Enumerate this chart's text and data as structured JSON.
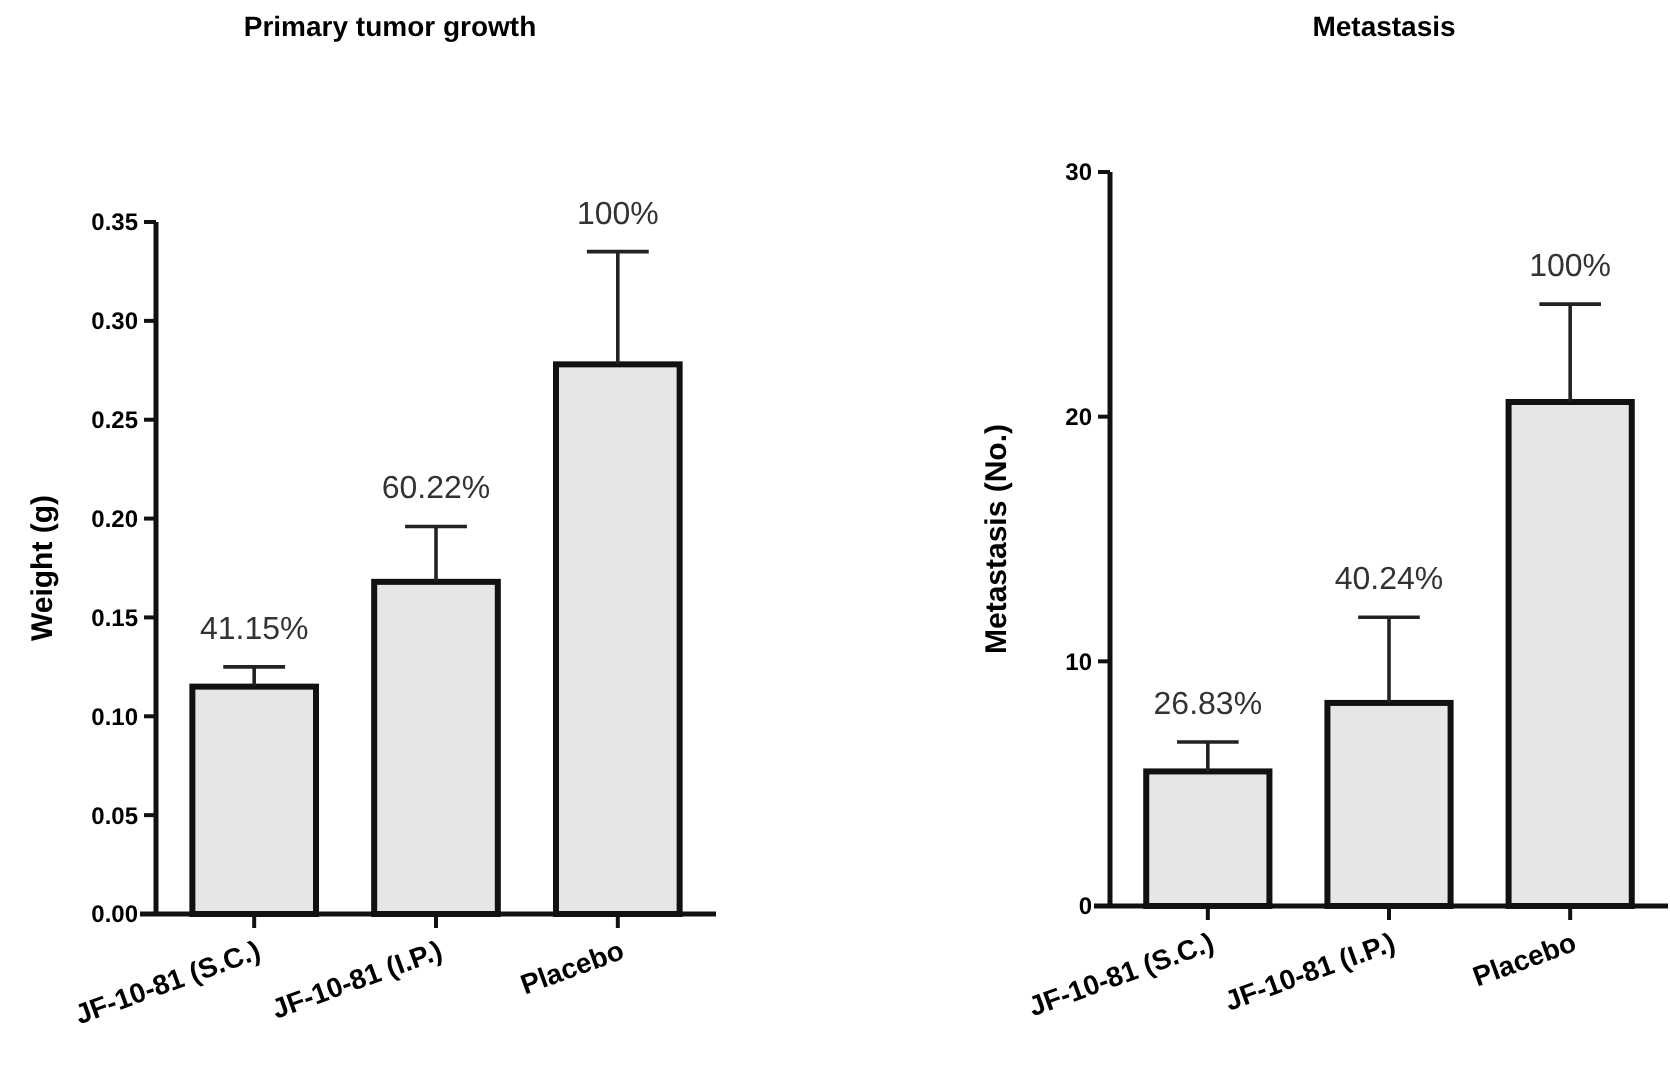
{
  "chart_data": [
    {
      "type": "bar",
      "title": "Primary tumor growth",
      "ylabel": "Weight (g)",
      "categories": [
        "JF-10-81 (S.C.)",
        "JF-10-81 (I.P.)",
        "Placebo"
      ],
      "values": [
        0.115,
        0.168,
        0.278
      ],
      "errors": [
        [
          0.115,
          0.125
        ],
        [
          0.168,
          0.196
        ],
        [
          0.278,
          0.335
        ]
      ],
      "annotations": [
        {
          "text": "41.15%",
          "x": "JF-10-81 (S.C.)",
          "y": 0.125
        },
        {
          "text": "60.22%",
          "x": "JF-10-81 (I.P.)",
          "y": 0.196
        },
        {
          "text": "100%",
          "x": "Placebo",
          "y": 0.335
        }
      ],
      "color": "#e6e6e6",
      "ylim": [
        0,
        0.35
      ],
      "yticks": [
        {
          "value": 0,
          "label": "0.00"
        },
        0.05,
        {
          "value": 0.1,
          "label": "0.10"
        },
        0.15,
        {
          "value": 0.2,
          "label": "0.20"
        },
        0.25,
        {
          "value": 0.3,
          "label": "0.30"
        },
        0.35
      ],
      "grid": false
    },
    {
      "type": "bar",
      "title": "Metastasis",
      "ylabel": "Metastasis (No.)",
      "categories": [
        "JF-10-81 (S.C.)",
        "JF-10-81 (I.P.)",
        "Placebo"
      ],
      "values": [
        5.5,
        8.3,
        20.6
      ],
      "errors": [
        [
          5.5,
          6.7
        ],
        [
          8.3,
          11.8
        ],
        [
          20.6,
          24.6
        ]
      ],
      "annotations": [
        {
          "text": "26.83%",
          "x": "JF-10-81 (S.C.)",
          "y": 6.7
        },
        {
          "text": "40.24%",
          "x": "JF-10-81 (I.P.)",
          "y": 11.8
        },
        {
          "text": "100%",
          "x": "Placebo",
          "y": 24.6
        }
      ],
      "color": "#e6e6e6",
      "ylim": [
        0,
        30
      ],
      "yticks": [
        0,
        10,
        20,
        30
      ],
      "grid": false
    }
  ]
}
